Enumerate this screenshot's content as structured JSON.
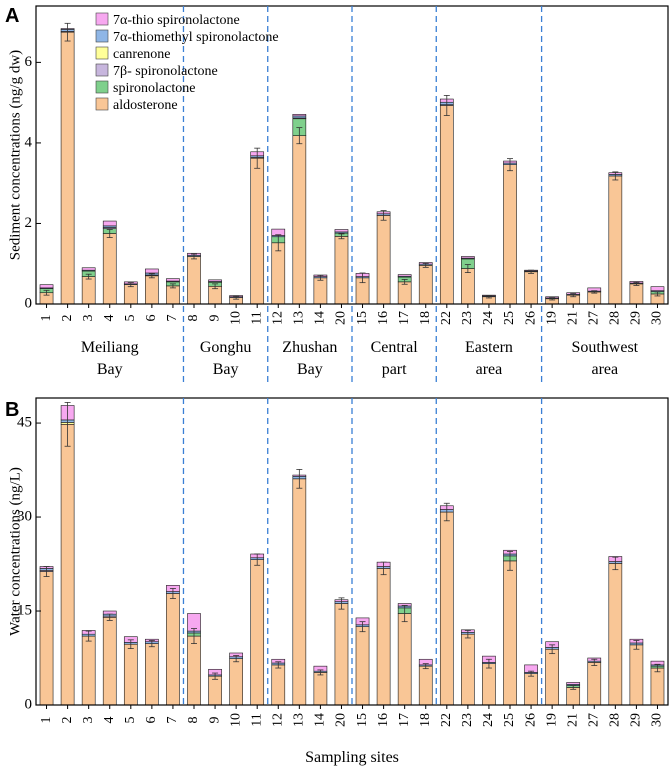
{
  "colors": {
    "aldosterone": "#f9c696",
    "spironolactone": "#7fd08c",
    "7b_spironolactone": "#c7b6dd",
    "canrenone": "#ffff99",
    "7a_thiomethyl": "#8fb6e6",
    "7a_thio": "#f7a8f0",
    "segment_edge": "#1a1a1a",
    "divider": "#3a7fd5",
    "error_bar": "#333333"
  },
  "chart_data": [
    {
      "panel": "A",
      "type": "bar",
      "stacked": true,
      "ylabel": "Sediment concentrations (ng/g dw)",
      "ylim": [
        0,
        7.4
      ],
      "yticks": [
        0,
        2,
        4,
        6
      ],
      "legend_position": "top-left",
      "legend": [
        "7α-thio spironolactone",
        "7α-thiomethyl spironolactone",
        "canrenone",
        "7β- spironolactone",
        "spironolactone",
        "aldosterone"
      ],
      "categories": [
        "1",
        "2",
        "3",
        "4",
        "5",
        "6",
        "7",
        "8",
        "9",
        "10",
        "11",
        "12",
        "13",
        "14",
        "20",
        "15",
        "16",
        "17",
        "18",
        "22",
        "23",
        "24",
        "25",
        "26",
        "19",
        "21",
        "27",
        "28",
        "29",
        "30"
      ],
      "series": [
        {
          "name": "aldosterone",
          "key": "aldosterone",
          "values": [
            0.28,
            6.75,
            0.68,
            1.75,
            0.48,
            0.7,
            0.45,
            1.18,
            0.44,
            0.16,
            3.62,
            1.52,
            4.18,
            0.65,
            1.68,
            0.65,
            2.2,
            0.55,
            0.96,
            4.93,
            0.88,
            0.18,
            3.46,
            0.8,
            0.13,
            0.22,
            0.3,
            3.18,
            0.5,
            0.25
          ]
        },
        {
          "name": "spironolactone",
          "key": "spironolactone",
          "values": [
            0.1,
            0.0,
            0.14,
            0.12,
            0.0,
            0.0,
            0.1,
            0.0,
            0.1,
            0.0,
            0.0,
            0.15,
            0.42,
            0.0,
            0.08,
            0.0,
            0.0,
            0.12,
            0.0,
            0.0,
            0.24,
            0.0,
            0.0,
            0.0,
            0.0,
            0.0,
            0.0,
            0.0,
            0.0,
            0.06
          ]
        },
        {
          "name": "7β- spironolactone",
          "key": "7b_spironolactone",
          "values": [
            0.0,
            0.02,
            0.0,
            0.03,
            0.0,
            0.02,
            0.0,
            0.0,
            0.0,
            0.0,
            0.02,
            0.0,
            0.02,
            0.0,
            0.0,
            0.0,
            0.0,
            0.0,
            0.0,
            0.02,
            0.0,
            0.0,
            0.0,
            0.0,
            0.0,
            0.0,
            0.0,
            0.0,
            0.0,
            0.0
          ]
        },
        {
          "name": "canrenone",
          "key": "canrenone",
          "values": [
            0.0,
            0.0,
            0.0,
            0.0,
            0.0,
            0.0,
            0.0,
            0.0,
            0.0,
            0.0,
            0.0,
            0.0,
            0.0,
            0.0,
            0.0,
            0.0,
            0.0,
            0.0,
            0.0,
            0.0,
            0.0,
            0.0,
            0.0,
            0.0,
            0.0,
            0.0,
            0.0,
            0.0,
            0.0,
            0.0
          ]
        },
        {
          "name": "7α-thiomethyl spironolactone",
          "key": "7a_thiomethyl",
          "values": [
            0.02,
            0.05,
            0.02,
            0.04,
            0.02,
            0.05,
            0.02,
            0.03,
            0.02,
            0.02,
            0.04,
            0.03,
            0.05,
            0.03,
            0.03,
            0.03,
            0.04,
            0.02,
            0.03,
            0.06,
            0.02,
            0.02,
            0.04,
            0.02,
            0.02,
            0.02,
            0.02,
            0.04,
            0.02,
            0.02
          ]
        },
        {
          "name": "7α-thio spironolactone",
          "key": "7a_thio",
          "values": [
            0.08,
            0.02,
            0.06,
            0.12,
            0.05,
            0.1,
            0.06,
            0.05,
            0.04,
            0.03,
            0.1,
            0.16,
            0.04,
            0.04,
            0.06,
            0.08,
            0.05,
            0.04,
            0.04,
            0.08,
            0.04,
            0.02,
            0.05,
            0.02,
            0.03,
            0.04,
            0.08,
            0.04,
            0.04,
            0.1
          ]
        }
      ],
      "errors": [
        0.06,
        0.22,
        0.06,
        0.1,
        0.05,
        0.05,
        0.05,
        0.06,
        0.06,
        0.04,
        0.25,
        0.2,
        0.2,
        0.06,
        0.06,
        0.12,
        0.12,
        0.06,
        0.05,
        0.25,
        0.1,
        0.03,
        0.15,
        0.04,
        0.03,
        0.04,
        0.03,
        0.1,
        0.04,
        0.05
      ],
      "groups": [
        {
          "label": "Meiliang\nBay",
          "count": 7
        },
        {
          "label": "Gonghu\nBay",
          "count": 4
        },
        {
          "label": "Zhushan\nBay",
          "count": 4
        },
        {
          "label": "Central\npart",
          "count": 4
        },
        {
          "label": "Eastern\narea",
          "count": 5
        },
        {
          "label": "Southwest\narea",
          "count": 6
        }
      ]
    },
    {
      "panel": "B",
      "type": "bar",
      "stacked": true,
      "ylabel": "Water concentrations (ng/L)",
      "xlabel": "Sampling sites",
      "ylim": [
        0,
        49
      ],
      "yticks": [
        0,
        15,
        30,
        45
      ],
      "categories": [
        "1",
        "2",
        "3",
        "4",
        "5",
        "6",
        "7",
        "8",
        "9",
        "10",
        "11",
        "12",
        "13",
        "14",
        "20",
        "15",
        "16",
        "17",
        "18",
        "22",
        "23",
        "24",
        "25",
        "26",
        "19",
        "21",
        "27",
        "28",
        "29",
        "30"
      ],
      "series": [
        {
          "name": "aldosterone",
          "key": "aldosterone",
          "values": [
            21.3,
            44.8,
            11.0,
            14.0,
            9.7,
            9.8,
            17.8,
            11.0,
            4.6,
            7.4,
            23.2,
            6.4,
            36.1,
            5.2,
            16.2,
            12.5,
            21.8,
            14.6,
            6.2,
            30.8,
            11.3,
            6.6,
            23.0,
            5.0,
            8.9,
            2.8,
            6.8,
            22.6,
            9.6,
            5.9
          ]
        },
        {
          "name": "spironolactone",
          "key": "spironolactone",
          "values": [
            0.0,
            0.0,
            0.0,
            0.0,
            0.0,
            0.0,
            0.0,
            0.5,
            0.0,
            0.0,
            0.0,
            0.0,
            0.0,
            0.0,
            0.0,
            0.0,
            0.0,
            0.9,
            0.0,
            0.0,
            0.0,
            0.0,
            0.8,
            0.0,
            0.0,
            0.3,
            0.0,
            0.0,
            0.0,
            0.3
          ]
        },
        {
          "name": "7β- spironolactone",
          "key": "7b_spironolactone",
          "values": [
            0.2,
            0.0,
            0.0,
            0.2,
            0.0,
            0.0,
            0.0,
            0.0,
            0.0,
            0.0,
            0.0,
            0.0,
            0.0,
            0.0,
            0.0,
            0.0,
            0.0,
            0.0,
            0.0,
            0.0,
            0.0,
            0.0,
            0.0,
            0.0,
            0.0,
            0.0,
            0.0,
            0.0,
            0.0,
            0.0
          ]
        },
        {
          "name": "canrenone",
          "key": "canrenone",
          "values": [
            0.0,
            0.3,
            0.0,
            0.0,
            0.0,
            0.0,
            0.0,
            0.0,
            0.0,
            0.0,
            0.0,
            0.0,
            0.0,
            0.0,
            0.0,
            0.0,
            0.0,
            0.0,
            0.0,
            0.0,
            0.0,
            0.0,
            0.0,
            0.0,
            0.0,
            0.0,
            0.0,
            0.0,
            0.0,
            0.0
          ]
        },
        {
          "name": "7α-thiomethyl spironolactone",
          "key": "7a_thiomethyl",
          "values": [
            0.3,
            0.4,
            0.3,
            0.3,
            0.3,
            0.3,
            0.3,
            0.3,
            0.2,
            0.3,
            0.3,
            0.3,
            0.4,
            0.2,
            0.3,
            0.3,
            0.3,
            0.3,
            0.2,
            0.4,
            0.3,
            0.2,
            0.3,
            0.2,
            0.3,
            0.2,
            0.2,
            0.3,
            0.3,
            0.2
          ]
        },
        {
          "name": "7α-thio spironolactone",
          "key": "7a_thio",
          "values": [
            0.3,
            2.3,
            0.6,
            0.5,
            0.9,
            0.4,
            1.0,
            2.8,
            0.9,
            0.6,
            0.6,
            0.6,
            0.2,
            0.8,
            0.3,
            1.1,
            0.7,
            0.4,
            0.9,
            0.6,
            0.4,
            1.0,
            0.6,
            1.2,
            0.9,
            0.3,
            0.5,
            0.8,
            0.6,
            0.6
          ]
        }
      ],
      "errors": [
        0.8,
        3.5,
        0.8,
        0.5,
        0.7,
        0.5,
        0.8,
        1.2,
        0.5,
        0.5,
        0.9,
        0.5,
        1.5,
        0.4,
        0.9,
        0.8,
        1.0,
        1.3,
        0.4,
        1.4,
        0.6,
        0.7,
        1.5,
        0.4,
        0.7,
        0.3,
        0.5,
        1.0,
        0.7,
        0.6
      ]
    }
  ]
}
